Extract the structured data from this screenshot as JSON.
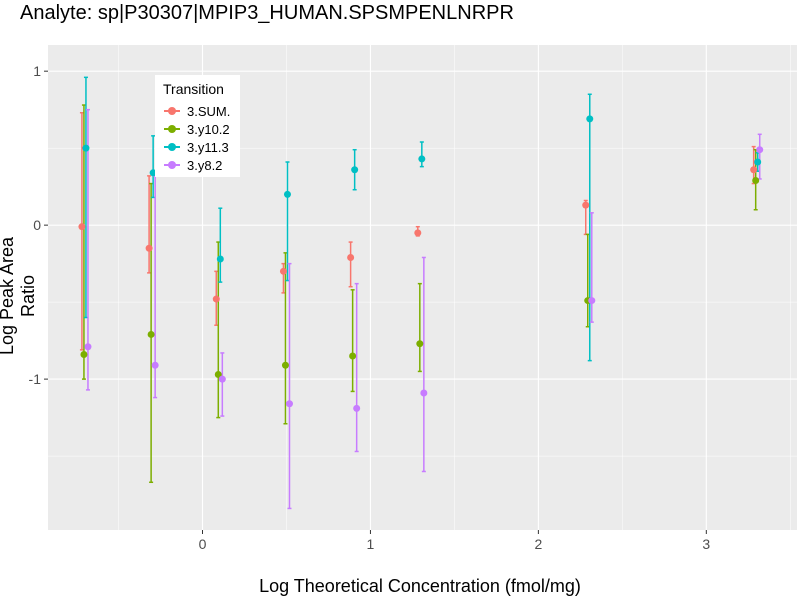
{
  "chart_data": {
    "type": "scatter",
    "title": "Analyte: sp|P30307|MPIP3_HUMAN.SPSMPENLNRPR",
    "xlabel": "Log Theoretical Concentration (fmol/mg)",
    "ylabel": "Log Peak Area Ratio",
    "xlim": [
      -0.92,
      3.54
    ],
    "ylim": [
      -1.98,
      1.17
    ],
    "xticks": [
      0,
      1,
      2,
      3
    ],
    "xtick_labels": [
      "0",
      "1",
      "2",
      "3"
    ],
    "yticks": [
      -1,
      0,
      1
    ],
    "ytick_labels": [
      "-1",
      "0",
      "1"
    ],
    "grid": true,
    "legend": {
      "title": "Transition",
      "placement": "top-left"
    },
    "x": [
      -0.7,
      -0.3,
      0.1,
      0.5,
      0.9,
      1.3,
      2.3,
      3.3
    ],
    "series": [
      {
        "name": "3.SUM.",
        "color": "#F8766D",
        "values": [
          -0.01,
          -0.15,
          -0.48,
          -0.3,
          -0.21,
          -0.05,
          0.13,
          0.36
        ],
        "upper": [
          0.73,
          0.32,
          -0.3,
          -0.25,
          -0.11,
          -0.01,
          0.16,
          0.51
        ],
        "lower": [
          -0.81,
          -0.31,
          -0.65,
          -0.44,
          -0.4,
          -0.07,
          -0.06,
          0.27
        ]
      },
      {
        "name": "3.y10.2",
        "color": "#7CAE00",
        "values": [
          -0.84,
          -0.71,
          -0.97,
          -0.91,
          -0.85,
          -0.77,
          -0.49,
          0.29
        ],
        "upper": [
          0.78,
          0.27,
          -0.11,
          -0.18,
          -0.42,
          -0.38,
          -0.06,
          0.49
        ],
        "lower": [
          -1.0,
          -1.67,
          -1.25,
          -1.29,
          -1.08,
          -0.95,
          -0.66,
          0.1
        ]
      },
      {
        "name": "3.y11.3",
        "color": "#00BFC4",
        "values": [
          0.5,
          0.34,
          -0.22,
          0.2,
          0.36,
          0.43,
          0.69,
          0.41
        ],
        "upper": [
          0.96,
          0.58,
          0.11,
          0.41,
          0.49,
          0.54,
          0.85,
          0.47
        ],
        "lower": [
          -0.6,
          0.18,
          -0.37,
          -0.36,
          0.23,
          0.38,
          -0.88,
          0.35
        ]
      },
      {
        "name": "3.y8.2",
        "color": "#C77CFF",
        "values": [
          -0.79,
          -0.91,
          -1.0,
          -1.16,
          -1.19,
          -1.09,
          -0.49,
          0.49
        ],
        "upper": [
          0.75,
          0.32,
          -0.83,
          -0.25,
          -0.38,
          -0.21,
          0.08,
          0.59
        ],
        "lower": [
          -1.07,
          -1.12,
          -1.24,
          -1.84,
          -1.47,
          -1.6,
          -0.63,
          0.3
        ]
      }
    ]
  }
}
